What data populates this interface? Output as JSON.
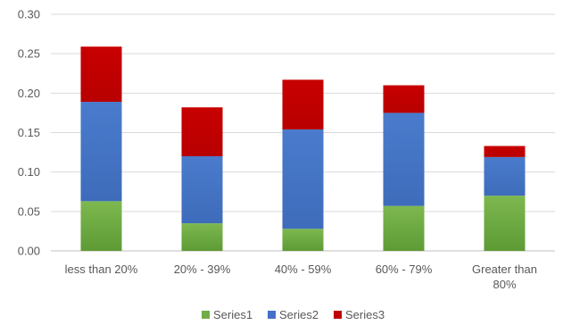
{
  "chart_data": {
    "type": "bar",
    "stacked": true,
    "categories": [
      [
        "less than 20%"
      ],
      [
        "20% - 39%"
      ],
      [
        "40% - 59%"
      ],
      [
        "60% - 79%"
      ],
      [
        "Greater than",
        "80%"
      ]
    ],
    "series": [
      {
        "name": "Series1",
        "values": [
          0.063,
          0.035,
          0.028,
          0.057,
          0.07
        ],
        "color": "#70AD47"
      },
      {
        "name": "Series2",
        "values": [
          0.126,
          0.085,
          0.126,
          0.118,
          0.049
        ],
        "color": "#4472C4"
      },
      {
        "name": "Series3",
        "values": [
          0.07,
          0.062,
          0.063,
          0.035,
          0.014
        ],
        "color": "#C00000"
      }
    ],
    "ylim": [
      0,
      0.3
    ],
    "yticks": [
      "0.00",
      "0.05",
      "0.10",
      "0.15",
      "0.20",
      "0.25",
      "0.30"
    ],
    "title": "",
    "xlabel": "",
    "ylabel": "",
    "grid": true,
    "legend_position": "bottom"
  }
}
